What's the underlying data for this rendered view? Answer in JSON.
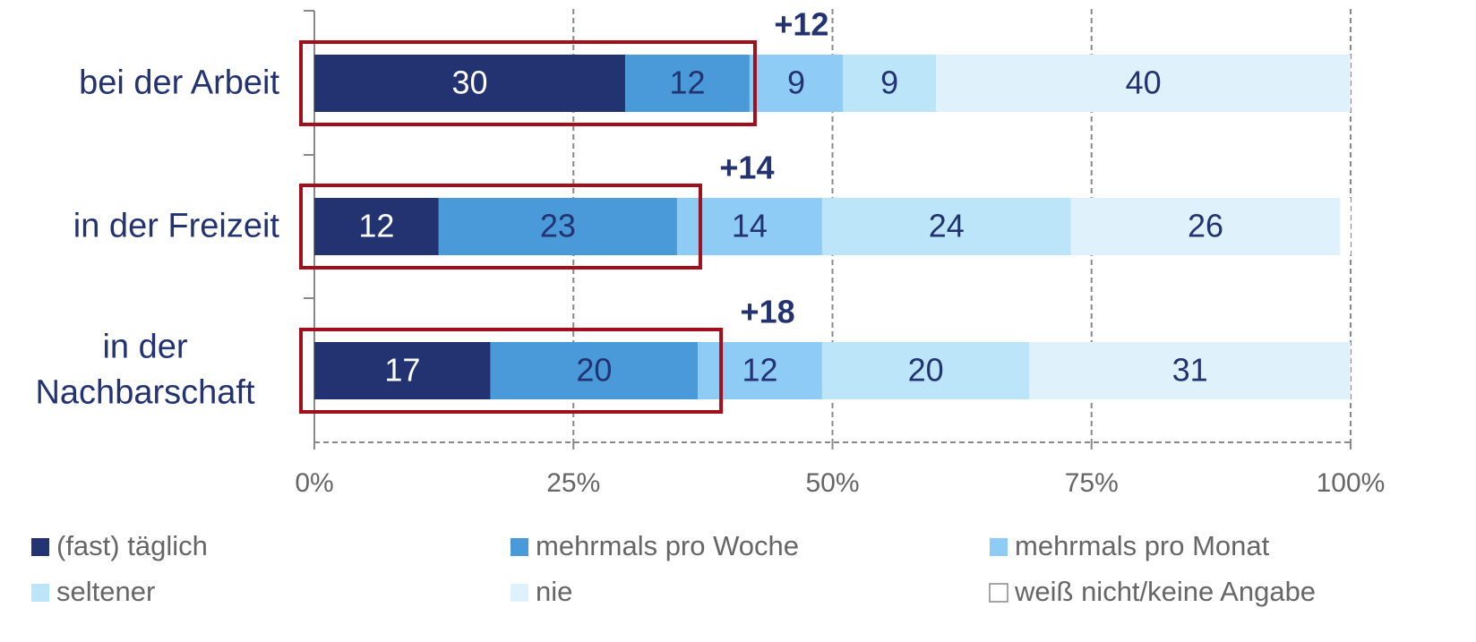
{
  "chart_data": {
    "type": "stacked_bar_horizontal",
    "categories": [
      "bei der Arbeit",
      "in der Freizeit",
      "in der Nachbarschaft"
    ],
    "series": [
      {
        "name": "(fast) täglich",
        "color": "#233371",
        "values": [
          30,
          12,
          17
        ]
      },
      {
        "name": "mehrmals pro Woche",
        "color": "#4a9ad9",
        "values": [
          12,
          23,
          20
        ]
      },
      {
        "name": "mehrmals pro Monat",
        "color": "#8ecbf5",
        "values": [
          9,
          14,
          12
        ]
      },
      {
        "name": "seltener",
        "color": "#bde5fa",
        "values": [
          9,
          24,
          20
        ]
      },
      {
        "name": "nie",
        "color": "#dff2fc",
        "values": [
          40,
          26,
          31
        ]
      },
      {
        "name": "weiß nicht/keine Angabe",
        "color": "#ffffff",
        "values": [
          0,
          1,
          0
        ]
      }
    ],
    "annotations": [
      "+12",
      "+14",
      "+18"
    ],
    "xlim": [
      0,
      100
    ],
    "xticks": [
      {
        "value": 0,
        "label": "0%"
      },
      {
        "value": 25,
        "label": "25%"
      },
      {
        "value": 50,
        "label": "50%"
      },
      {
        "value": 75,
        "label": "75%"
      },
      {
        "value": 100,
        "label": "100%"
      }
    ],
    "grid": true,
    "legend": "bottom"
  }
}
